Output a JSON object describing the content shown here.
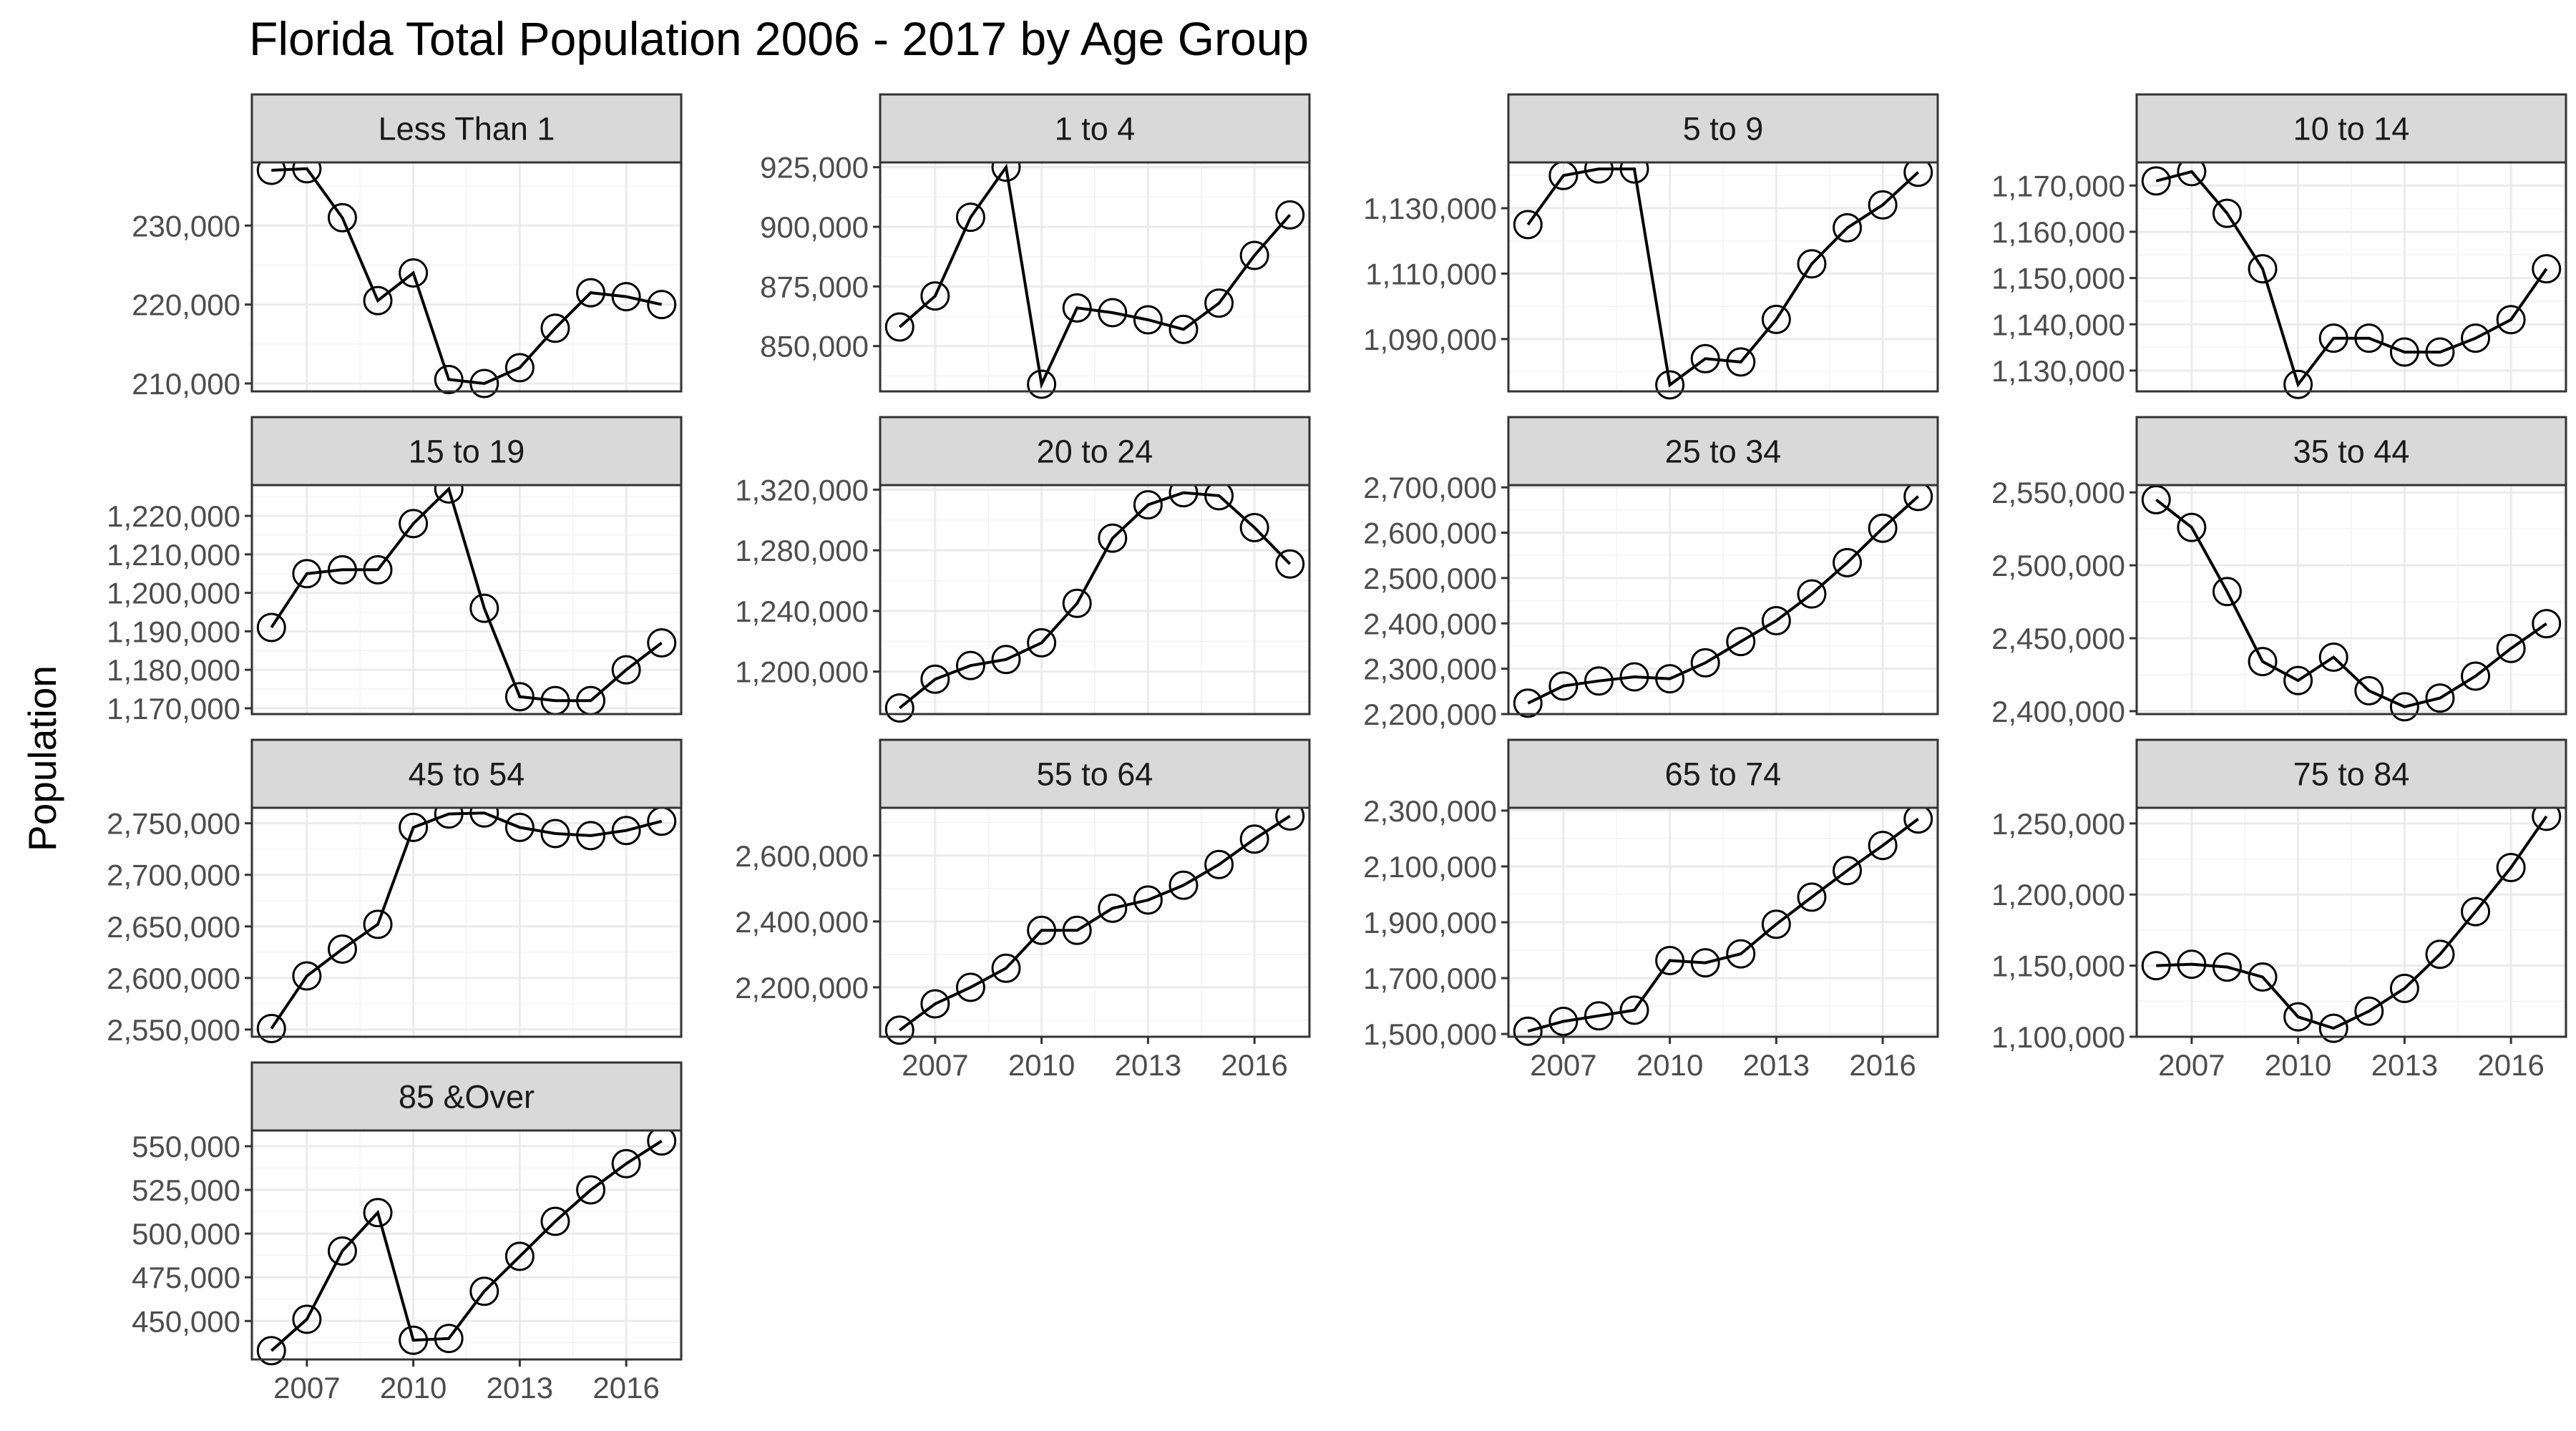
{
  "chart_data": {
    "type": "line",
    "title": "Florida Total Population 2006 - 2017 by Age Group",
    "ylabel": "Population",
    "xlabel": "",
    "x": [
      2006,
      2007,
      2008,
      2009,
      2010,
      2011,
      2012,
      2013,
      2014,
      2015,
      2016,
      2017
    ],
    "x_ticks": [
      2007,
      2010,
      2013,
      2016
    ],
    "x_tick_labels": [
      "2007",
      "2010",
      "2013",
      "2016"
    ],
    "x_range": [
      2005.45,
      2017.55
    ],
    "grid": true,
    "legend": "none",
    "facet_layout": "4 columns, free y scales, x axis shown on bottom panel of each column",
    "panels": [
      {
        "name": "Less Than 1",
        "values": [
          237000,
          237200,
          231000,
          220500,
          224000,
          210500,
          210000,
          212000,
          217000,
          221500,
          221000,
          220000
        ],
        "ylim": [
          209000,
          238000
        ],
        "yticks": [
          210000,
          220000,
          230000
        ],
        "ytick_labels": [
          "210,000",
          "220,000",
          "230,000"
        ]
      },
      {
        "name": "1 to 4",
        "values": [
          858000,
          871000,
          904000,
          925000,
          834000,
          866000,
          864000,
          861000,
          857000,
          868000,
          888000,
          905000
        ],
        "ylim": [
          831000,
          927000
        ],
        "yticks": [
          850000,
          875000,
          900000,
          925000
        ],
        "ytick_labels": [
          "850,000",
          "875,000",
          "900,000",
          "925,000"
        ]
      },
      {
        "name": "5 to 9",
        "values": [
          1125000,
          1140000,
          1142000,
          1142000,
          1076000,
          1084000,
          1083000,
          1096000,
          1113000,
          1124000,
          1131000,
          1141000
        ],
        "ylim": [
          1074000,
          1144000
        ],
        "yticks": [
          1090000,
          1110000,
          1130000
        ],
        "ytick_labels": [
          "1,090,000",
          "1,110,000",
          "1,130,000"
        ]
      },
      {
        "name": "10 to 14",
        "values": [
          1171000,
          1173000,
          1164000,
          1152000,
          1127000,
          1137000,
          1137000,
          1134000,
          1134000,
          1137000,
          1141000,
          1152000
        ],
        "ylim": [
          1125500,
          1175000
        ],
        "yticks": [
          1130000,
          1140000,
          1150000,
          1160000,
          1170000
        ],
        "ytick_labels": [
          "1,130,000",
          "1,140,000",
          "1,150,000",
          "1,160,000",
          "1,170,000"
        ]
      },
      {
        "name": "15 to 19",
        "values": [
          1191000,
          1205000,
          1206000,
          1206000,
          1218000,
          1227000,
          1196000,
          1173000,
          1172000,
          1172000,
          1180000,
          1187000
        ],
        "ylim": [
          1168500,
          1228000
        ],
        "yticks": [
          1170000,
          1180000,
          1190000,
          1200000,
          1210000,
          1220000
        ],
        "ytick_labels": [
          "1,170,000",
          "1,180,000",
          "1,190,000",
          "1,200,000",
          "1,210,000",
          "1,220,000"
        ]
      },
      {
        "name": "20 to 24",
        "values": [
          1176000,
          1195000,
          1204000,
          1208000,
          1219000,
          1245000,
          1288000,
          1310000,
          1318000,
          1316000,
          1295000,
          1271000
        ],
        "ylim": [
          1172000,
          1323000
        ],
        "yticks": [
          1200000,
          1240000,
          1280000,
          1320000
        ],
        "ytick_labels": [
          "1,200,000",
          "1,240,000",
          "1,280,000",
          "1,320,000"
        ]
      },
      {
        "name": "25 to 34",
        "values": [
          2224000,
          2262000,
          2273000,
          2282000,
          2278000,
          2313000,
          2360000,
          2406000,
          2465000,
          2534000,
          2610000,
          2680000
        ],
        "ylim": [
          2200000,
          2705000
        ],
        "yticks": [
          2200000,
          2300000,
          2400000,
          2500000,
          2600000,
          2700000
        ],
        "ytick_labels": [
          "2,200,000",
          "2,300,000",
          "2,400,000",
          "2,500,000",
          "2,600,000",
          "2,700,000"
        ]
      },
      {
        "name": "35 to 44",
        "values": [
          2545000,
          2526000,
          2482000,
          2434000,
          2421000,
          2437000,
          2414000,
          2403000,
          2409000,
          2424000,
          2443000,
          2460000
        ],
        "ylim": [
          2398000,
          2555000
        ],
        "yticks": [
          2400000,
          2450000,
          2500000,
          2550000
        ],
        "ytick_labels": [
          "2,400,000",
          "2,450,000",
          "2,500,000",
          "2,550,000"
        ]
      },
      {
        "name": "45 to 54",
        "values": [
          2551000,
          2602000,
          2628000,
          2652000,
          2746000,
          2759000,
          2760000,
          2746000,
          2740000,
          2738000,
          2743000,
          2752000
        ],
        "ylim": [
          2543000,
          2765000
        ],
        "yticks": [
          2550000,
          2600000,
          2650000,
          2700000,
          2750000
        ],
        "ytick_labels": [
          "2,550,000",
          "2,600,000",
          "2,650,000",
          "2,700,000",
          "2,750,000"
        ]
      },
      {
        "name": "55 to 64",
        "values": [
          2070000,
          2150000,
          2200000,
          2258000,
          2373000,
          2373000,
          2440000,
          2465000,
          2510000,
          2573000,
          2650000,
          2720000
        ],
        "ylim": [
          2050000,
          2745000
        ],
        "yticks": [
          2200000,
          2400000,
          2600000
        ],
        "ytick_labels": [
          "2,200,000",
          "2,400,000",
          "2,600,000"
        ]
      },
      {
        "name": "65 to 74",
        "values": [
          1510000,
          1545000,
          1565000,
          1585000,
          1763000,
          1755000,
          1787000,
          1893000,
          1990000,
          2085000,
          2175000,
          2270000
        ],
        "ylim": [
          1490000,
          2310000
        ],
        "yticks": [
          1500000,
          1700000,
          1900000,
          2100000,
          2300000
        ],
        "ytick_labels": [
          "1,500,000",
          "1,700,000",
          "1,900,000",
          "2,100,000",
          "2,300,000"
        ]
      },
      {
        "name": "75 to 84",
        "values": [
          1150000,
          1151000,
          1149000,
          1142000,
          1114000,
          1106000,
          1118000,
          1134000,
          1158000,
          1188000,
          1219000,
          1255000
        ],
        "ylim": [
          1100000,
          1261000
        ],
        "yticks": [
          1100000,
          1150000,
          1200000,
          1250000
        ],
        "ytick_labels": [
          "1,100,000",
          "1,150,000",
          "1,200,000",
          "1,250,000"
        ]
      },
      {
        "name": "85 &Over",
        "values": [
          433000,
          451000,
          490000,
          512000,
          439000,
          440000,
          467000,
          487000,
          507000,
          525000,
          540000,
          553000
        ],
        "ylim": [
          428000,
          559000
        ],
        "yticks": [
          450000,
          475000,
          500000,
          525000,
          550000
        ],
        "ytick_labels": [
          "450,000",
          "475,000",
          "500,000",
          "525,000",
          "550,000"
        ]
      }
    ]
  }
}
